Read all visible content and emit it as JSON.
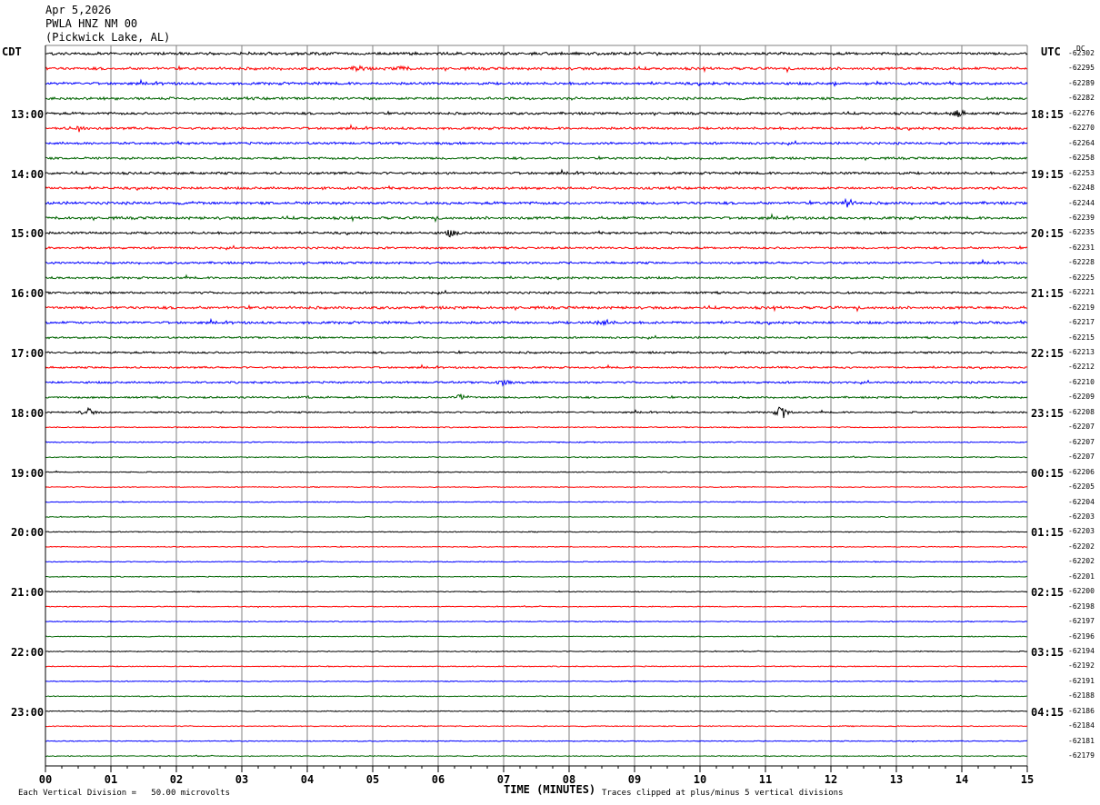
{
  "header": {
    "date": "Apr 5,2026",
    "station": "PWLA HNZ NM 00",
    "location": "(Pickwick Lake, AL)"
  },
  "chart_data": {
    "type": "line",
    "title": "Apr 5,2026",
    "subtitle": "PWLA HNZ NM 00 (Pickwick Lake, AL)",
    "xlabel": "TIME (MINUTES)",
    "x_ticks": [
      "00",
      "01",
      "02",
      "03",
      "04",
      "05",
      "06",
      "07",
      "08",
      "09",
      "10",
      "11",
      "12",
      "13",
      "14",
      "15"
    ],
    "xlim": [
      0,
      15
    ],
    "left_timezone": "CDT",
    "right_timezone": "UTC",
    "right_header": "DC",
    "left_hour_labels": [
      "13:00",
      "14:00",
      "15:00",
      "16:00",
      "17:00",
      "18:00",
      "19:00",
      "20:00",
      "21:00",
      "22:00",
      "23:00"
    ],
    "right_hour_labels": [
      "18:15",
      "19:15",
      "20:15",
      "21:15",
      "22:15",
      "23:15",
      "00:15",
      "01:15",
      "02:15",
      "03:15",
      "04:15"
    ],
    "hour_label_first_trace": 4,
    "traces_per_hour": 4,
    "trace_colors": [
      "#000000",
      "#ff0000",
      "#0000ff",
      "#006400"
    ],
    "dc_offsets": [
      "-62302",
      "-62295",
      "-62289",
      "-62282",
      "-62276",
      "-62270",
      "-62264",
      "-62258",
      "-62253",
      "-62248",
      "-62244",
      "-62239",
      "-62235",
      "-62231",
      "-62228",
      "-62225",
      "-62221",
      "-62219",
      "-62217",
      "-62215",
      "-62213",
      "-62212",
      "-62210",
      "-62209",
      "-62208",
      "-62207",
      "-62207",
      "-62207",
      "-62206",
      "-62205",
      "-62204",
      "-62203",
      "-62203",
      "-62202",
      "-62202",
      "-62201",
      "-62200",
      "-62198",
      "-62197",
      "-62196",
      "-62194",
      "-62192",
      "-62191",
      "-62188",
      "-62186",
      "-62184",
      "-62181",
      "-62179"
    ],
    "noise_level": [
      1.0,
      1.0,
      0.95,
      0.95,
      0.9,
      0.9,
      0.85,
      0.85,
      0.9,
      0.9,
      1.0,
      1.0,
      0.85,
      0.8,
      0.8,
      0.8,
      0.8,
      1.0,
      0.9,
      0.7,
      0.75,
      0.7,
      0.75,
      0.7,
      0.6,
      0.4,
      0.4,
      0.4,
      0.35,
      0.35,
      0.35,
      0.35,
      0.35,
      0.35,
      0.35,
      0.35,
      0.35,
      0.35,
      0.35,
      0.35,
      0.35,
      0.35,
      0.35,
      0.35,
      0.35,
      0.35,
      0.35,
      0.35
    ],
    "events": [
      {
        "trace": 1,
        "minute": 4.8,
        "amplitude": 4
      },
      {
        "trace": 1,
        "minute": 5.45,
        "amplitude": 3
      },
      {
        "trace": 5,
        "minute": 0.5,
        "amplitude": 4
      },
      {
        "trace": 4,
        "minute": 13.95,
        "amplitude": 5
      },
      {
        "trace": 10,
        "minute": 12.25,
        "amplitude": 6
      },
      {
        "trace": 12,
        "minute": 6.2,
        "amplitude": 5
      },
      {
        "trace": 18,
        "minute": 8.55,
        "amplitude": 6
      },
      {
        "trace": 22,
        "minute": 7.0,
        "amplitude": 4
      },
      {
        "trace": 23,
        "minute": 6.35,
        "amplitude": 5
      },
      {
        "trace": 24,
        "minute": 0.65,
        "amplitude": 6
      },
      {
        "trace": 24,
        "minute": 11.25,
        "amplitude": 10
      }
    ],
    "footer_left": "Each Vertical Division =   50.00 microvolts",
    "footer_right": "Traces clipped at plus/minus 5 vertical divisions"
  },
  "colors": {
    "grid": "#808080",
    "axis": "#000000"
  }
}
